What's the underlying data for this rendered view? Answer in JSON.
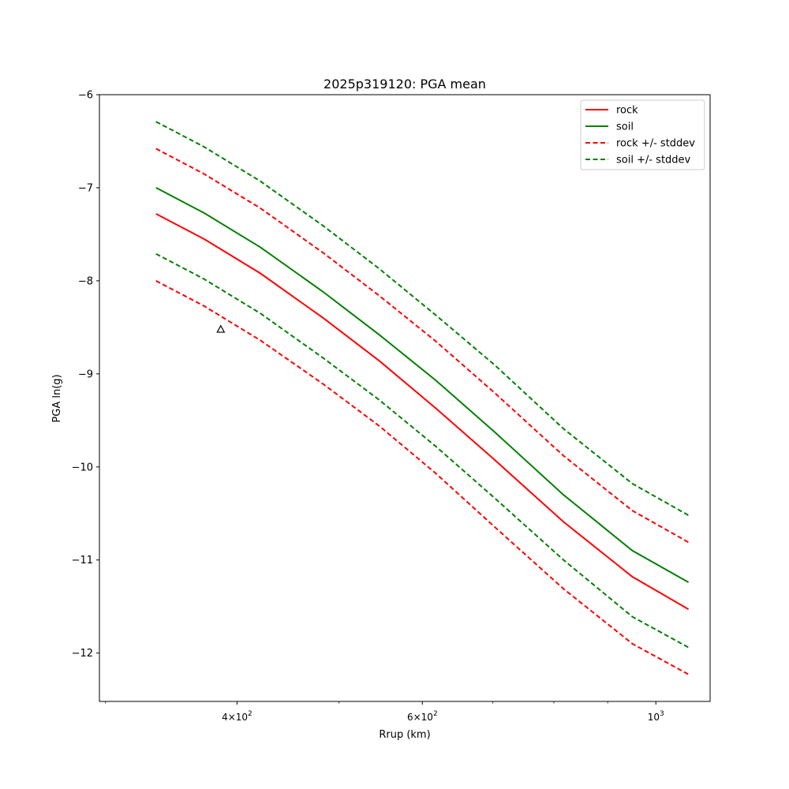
{
  "chart_data": {
    "type": "line",
    "title": "2025p319120: PGA mean",
    "xlabel": "Rrup (km)",
    "ylabel": "PGA ln(g)",
    "xscale": "log",
    "xlim": [
      296,
      1126
    ],
    "ylim": [
      -12.52,
      -6.0
    ],
    "x_major_ticks": [
      {
        "value": 400,
        "base": "4×10",
        "exp": "2"
      },
      {
        "value": 600,
        "base": "6×10",
        "exp": "2"
      },
      {
        "value": 1000,
        "base": "10",
        "exp": "3"
      }
    ],
    "x_minor_ticks": [
      300,
      500,
      700,
      800,
      900
    ],
    "y_ticks": [
      {
        "value": -6,
        "label": "−6"
      },
      {
        "value": -7,
        "label": "−7"
      },
      {
        "value": -8,
        "label": "−8"
      },
      {
        "value": -9,
        "label": "−9"
      },
      {
        "value": -10,
        "label": "−10"
      },
      {
        "value": -11,
        "label": "−11"
      },
      {
        "value": -12,
        "label": "−12"
      }
    ],
    "grid": false,
    "legend_position": "top-right",
    "x": [
      335,
      372,
      421,
      483,
      546,
      618,
      702,
      817,
      950,
      1074
    ],
    "series": [
      {
        "name": "rock",
        "color": "#ff0000",
        "style": "solid",
        "values": [
          -7.28,
          -7.55,
          -7.92,
          -8.4,
          -8.86,
          -9.37,
          -9.92,
          -10.59,
          -11.18,
          -11.53
        ]
      },
      {
        "name": "soil",
        "color": "#008000",
        "style": "solid",
        "values": [
          -7.0,
          -7.27,
          -7.64,
          -8.12,
          -8.58,
          -9.07,
          -9.62,
          -10.3,
          -10.9,
          -11.24
        ]
      },
      {
        "name": "rock +/- stddev",
        "color": "#ff0000",
        "style": "dashed",
        "group": "rock_band",
        "values": [
          -6.58,
          -6.85,
          -7.22,
          -7.7,
          -8.16,
          -8.65,
          -9.2,
          -9.88,
          -10.47,
          -10.81
        ]
      },
      {
        "name": "",
        "color": "#ff0000",
        "style": "dashed",
        "group": "rock_band",
        "values": [
          -8.0,
          -8.27,
          -8.64,
          -9.11,
          -9.56,
          -10.07,
          -10.64,
          -11.31,
          -11.9,
          -12.23
        ]
      },
      {
        "name": "soil +/- stddev",
        "color": "#008000",
        "style": "dashed",
        "group": "soil_band",
        "values": [
          -6.29,
          -6.56,
          -6.93,
          -7.41,
          -7.87,
          -8.37,
          -8.9,
          -9.59,
          -10.18,
          -10.52
        ]
      },
      {
        "name": "",
        "color": "#008000",
        "style": "dashed",
        "group": "soil_band",
        "values": [
          -7.71,
          -7.98,
          -8.35,
          -8.83,
          -9.28,
          -9.78,
          -10.33,
          -11.0,
          -11.61,
          -11.94
        ]
      }
    ],
    "observations": [
      {
        "x": 386,
        "y": -8.52,
        "marker": "triangle",
        "color": "#000000"
      }
    ],
    "legend": [
      {
        "label": "rock",
        "color": "#ff0000",
        "style": "solid"
      },
      {
        "label": "soil",
        "color": "#008000",
        "style": "solid"
      },
      {
        "label": "rock +/- stddev",
        "color": "#ff0000",
        "style": "dashed"
      },
      {
        "label": "soil +/- stddev",
        "color": "#008000",
        "style": "dashed"
      }
    ]
  }
}
